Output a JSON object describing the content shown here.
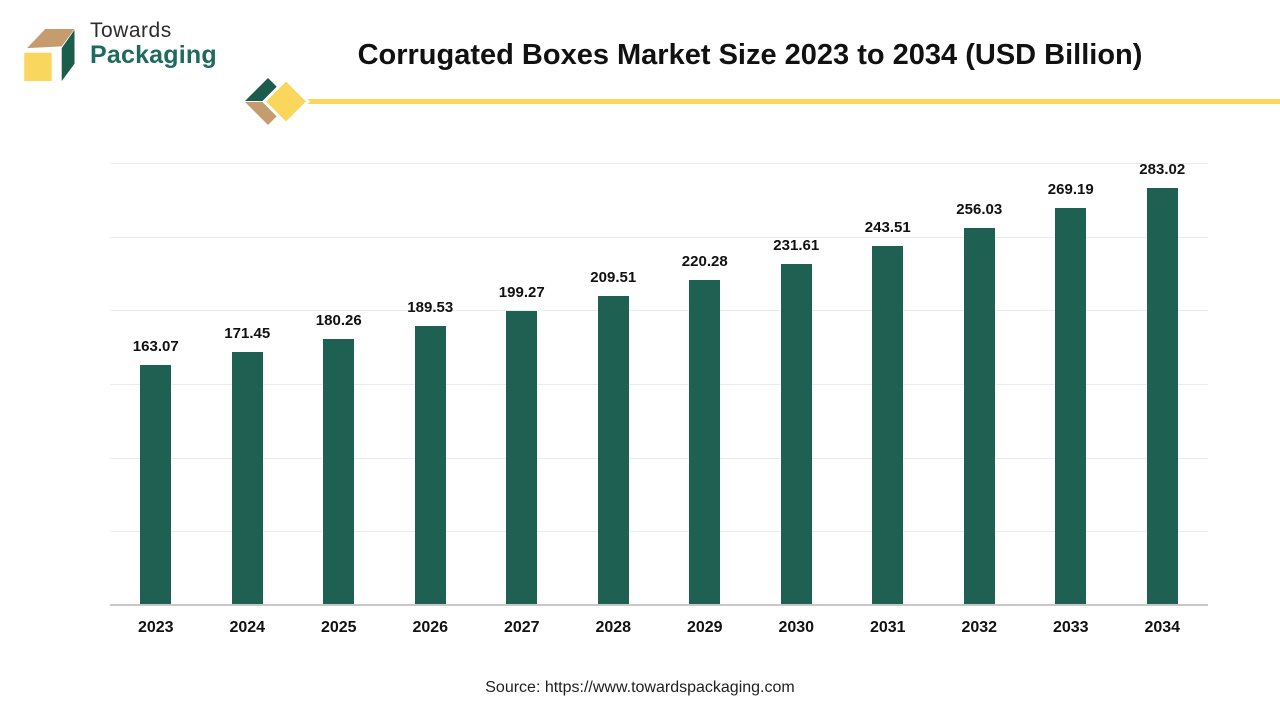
{
  "logo": {
    "name_line1": "Towards",
    "name_line2": "Packaging"
  },
  "header": {
    "title": "Corrugated Boxes Market Size 2023 to 2034 (USD Billion)"
  },
  "chart_data": {
    "type": "bar",
    "title": "Corrugated Boxes Market Size 2023 to 2034 (USD Billion)",
    "categories": [
      "2023",
      "2024",
      "2025",
      "2026",
      "2027",
      "2028",
      "2029",
      "2030",
      "2031",
      "2032",
      "2033",
      "2034"
    ],
    "values": [
      163.07,
      171.45,
      180.26,
      189.53,
      199.27,
      209.51,
      220.28,
      231.61,
      243.51,
      256.03,
      269.19,
      283.02
    ],
    "value_labels": [
      "163.07",
      "171.45",
      "180.26",
      "189.53",
      "199.27",
      "209.51",
      "220.28",
      "231.61",
      "243.51",
      "256.03",
      "269.19",
      "283.02"
    ],
    "xlabel": "",
    "ylabel": "",
    "ylim": [
      0,
      300
    ],
    "yticks": [
      0,
      50,
      100,
      150,
      200,
      250,
      300
    ],
    "grid": true,
    "legend": false
  },
  "footer": {
    "source": "Source: https://www.towardspackaging.com"
  },
  "colors": {
    "bar": "#1e6152",
    "accent_yellow": "#fbd65d",
    "accent_tan": "#c69c6f",
    "accent_green": "#1b5c4c",
    "brand_text_green": "#1e6a5c",
    "grid": "#ececec",
    "axis_line": "#c8c8c8"
  }
}
